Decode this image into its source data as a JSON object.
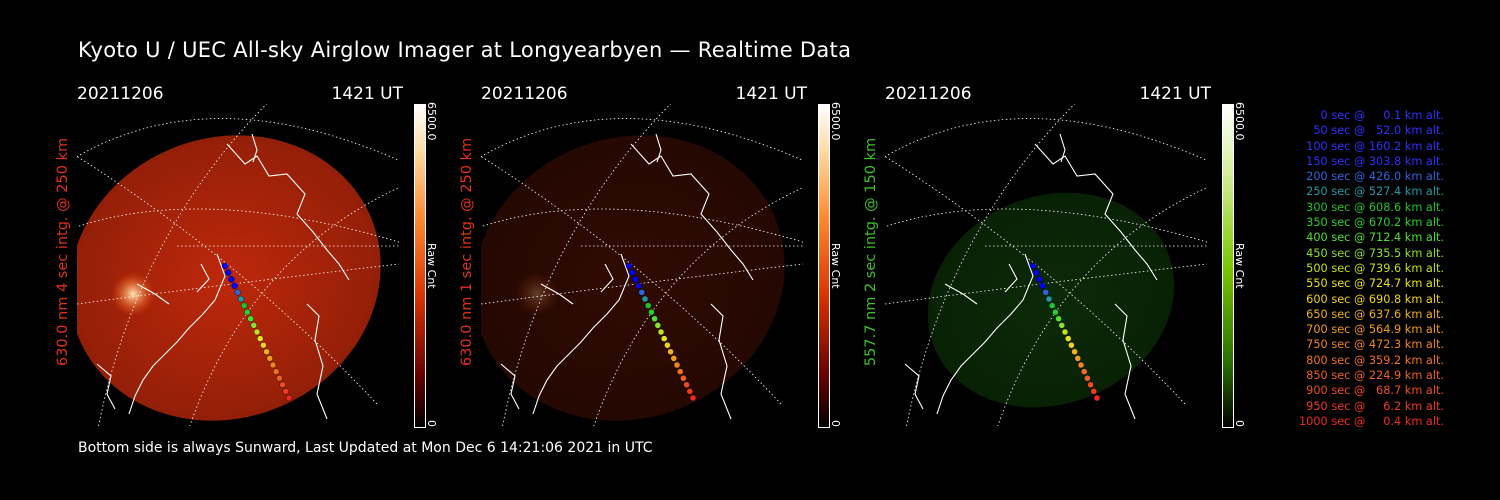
{
  "title": "Kyoto U / UEC All-sky Airglow Imager at Longyearbyen — Realtime Data",
  "footer": "Bottom side is always Sunward, Last Updated at Mon Dec  6 14:21:06 2021 in UTC",
  "panels": [
    {
      "date": "20211206",
      "time": "1421 UT",
      "side_label": "630.0 nm 4 sec intg. @ 250 km",
      "label_color": "#e0301e",
      "colorbar_max": "6500.0",
      "colorbar_min": "0",
      "colorbar_unit": "Raw Cnt",
      "tint": "red",
      "glow_intensity": 1.0
    },
    {
      "date": "20211206",
      "time": "1421 UT",
      "side_label": "630.0 nm 1 sec intg. @ 250 km",
      "label_color": "#e0301e",
      "colorbar_max": "6500.0",
      "colorbar_min": "0",
      "colorbar_unit": "Raw Cnt",
      "tint": "red",
      "glow_intensity": 0.25
    },
    {
      "date": "20211206",
      "time": "1421 UT",
      "side_label": "557.7 nm 2 sec intg. @ 150 km",
      "label_color": "#3ec02a",
      "colorbar_max": "6500.0",
      "colorbar_min": "0",
      "colorbar_unit": "Raw Cnt",
      "tint": "green",
      "glow_intensity": 0.35
    }
  ],
  "legend": [
    {
      "text": "   0 sec @     0.1 km alt.",
      "color": "#3030ff"
    },
    {
      "text": "  50 sec @   52.0 km alt.",
      "color": "#3030ff"
    },
    {
      "text": " 100 sec @ 160.2 km alt.",
      "color": "#3030ff"
    },
    {
      "text": " 150 sec @ 303.8 km alt.",
      "color": "#3030ff"
    },
    {
      "text": " 200 sec @ 426.0 km alt.",
      "color": "#2f63e0"
    },
    {
      "text": " 250 sec @ 527.4 km alt.",
      "color": "#1e9aa6"
    },
    {
      "text": " 300 sec @ 608.6 km alt.",
      "color": "#22c22a"
    },
    {
      "text": " 350 sec @ 670.2 km alt.",
      "color": "#28d028"
    },
    {
      "text": " 400 sec @ 712.4 km alt.",
      "color": "#50e030"
    },
    {
      "text": " 450 sec @ 735.5 km alt.",
      "color": "#8ae030"
    },
    {
      "text": " 500 sec @ 739.6 km alt.",
      "color": "#c0e020"
    },
    {
      "text": " 550 sec @ 724.7 km alt.",
      "color": "#e6e020"
    },
    {
      "text": " 600 sec @ 690.8 km alt.",
      "color": "#f0d020"
    },
    {
      "text": " 650 sec @ 637.6 km alt.",
      "color": "#f0b020"
    },
    {
      "text": " 700 sec @ 564.9 km alt.",
      "color": "#f09a20"
    },
    {
      "text": " 750 sec @ 472.3 km alt.",
      "color": "#f08420"
    },
    {
      "text": " 800 sec @ 359.2 km alt.",
      "color": "#f07020"
    },
    {
      "text": " 850 sec @ 224.9 km alt.",
      "color": "#f06020"
    },
    {
      "text": " 900 sec @   68.7 km alt.",
      "color": "#f04a20"
    },
    {
      "text": " 950 sec @     6.2 km alt.",
      "color": "#f03a20"
    },
    {
      "text": "1000 sec @     0.4 km alt.",
      "color": "#f02a20"
    }
  ],
  "track_colors": [
    "#0000ff",
    "#0000ff",
    "#0000ff",
    "#0000ff",
    "#2f63e0",
    "#1e9aa6",
    "#22c22a",
    "#28d028",
    "#50e030",
    "#8ae030",
    "#c0e020",
    "#e6e020",
    "#f0d020",
    "#f0b020",
    "#f09a20",
    "#f08420",
    "#f07020",
    "#f06020",
    "#f04a20",
    "#f03a20",
    "#f02a20"
  ]
}
